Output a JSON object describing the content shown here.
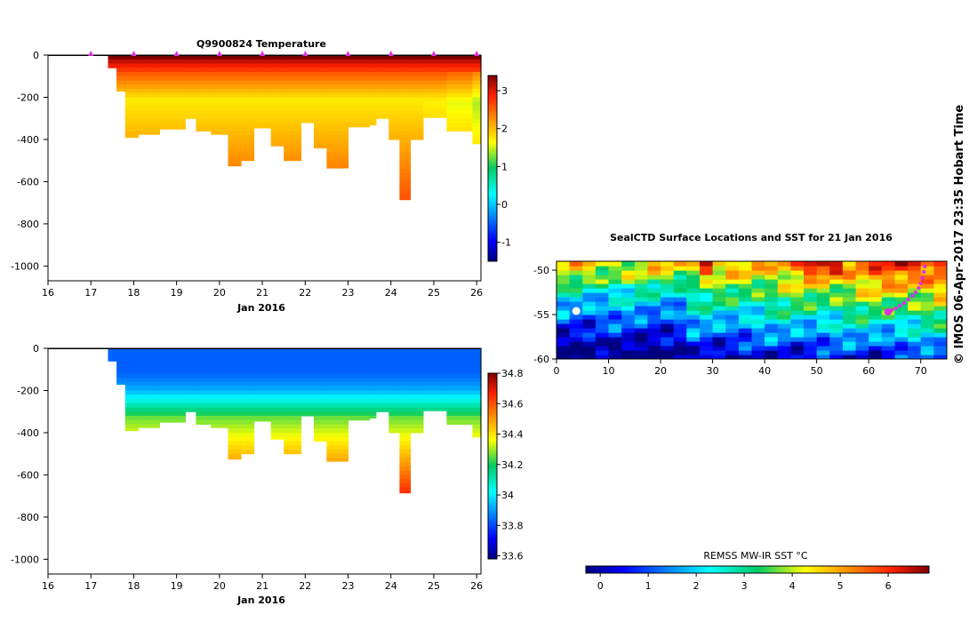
{
  "side_label": "© IMOS 06-Apr-2017 23:35 Hobart Time",
  "chart_data": [
    {
      "type": "heatmap",
      "title": "Q9900824  Temperature",
      "xlabel": "Jan 2016",
      "ylabel": "",
      "xlim": [
        16,
        26.1
      ],
      "ylim": [
        -1070,
        0
      ],
      "x_ticks": [
        16,
        17,
        18,
        19,
        20,
        21,
        22,
        23,
        24,
        25,
        26
      ],
      "y_ticks": [
        0,
        -200,
        -400,
        -600,
        -800,
        -1000
      ],
      "profile_markers_x": [
        17,
        18,
        19,
        20,
        21,
        22,
        23,
        24,
        25,
        26
      ],
      "colorbar": {
        "min": -1.5,
        "max": 3.4,
        "ticks": [
          -1,
          0,
          1,
          2,
          3
        ]
      },
      "profile_max_depth": [
        [
          17.4,
          17.6,
          60
        ],
        [
          17.6,
          17.8,
          170
        ],
        [
          17.8,
          18.1,
          390
        ],
        [
          18.1,
          18.6,
          375
        ],
        [
          18.6,
          19.2,
          350
        ],
        [
          19.2,
          19.45,
          300
        ],
        [
          19.45,
          19.8,
          360
        ],
        [
          19.8,
          20.2,
          375
        ],
        [
          20.2,
          20.5,
          525
        ],
        [
          20.5,
          20.8,
          500
        ],
        [
          20.8,
          21.2,
          345
        ],
        [
          21.2,
          21.5,
          430
        ],
        [
          21.5,
          21.9,
          500
        ],
        [
          21.9,
          22.2,
          320
        ],
        [
          22.2,
          22.5,
          440
        ],
        [
          22.5,
          23.0,
          535
        ],
        [
          23.0,
          23.5,
          340
        ],
        [
          23.5,
          23.65,
          330
        ],
        [
          23.65,
          23.95,
          300
        ],
        [
          23.95,
          24.2,
          400
        ],
        [
          24.2,
          24.45,
          685
        ],
        [
          24.45,
          24.75,
          400
        ],
        [
          24.75,
          25.3,
          295
        ],
        [
          25.3,
          25.9,
          360
        ],
        [
          25.9,
          26.1,
          420
        ]
      ]
    },
    {
      "type": "heatmap",
      "title": "",
      "xlabel": "Jan 2016",
      "ylabel": "",
      "xlim": [
        16,
        26.1
      ],
      "ylim": [
        -1070,
        0
      ],
      "x_ticks": [
        16,
        17,
        18,
        19,
        20,
        21,
        22,
        23,
        24,
        25,
        26
      ],
      "y_ticks": [
        0,
        -200,
        -400,
        -600,
        -800,
        -1000
      ],
      "colorbar": {
        "min": 33.58,
        "max": 34.8,
        "ticks": [
          33.6,
          33.8,
          34,
          34.2,
          34.4,
          34.6,
          34.8
        ]
      }
    },
    {
      "type": "heatmap",
      "title": "SealCTD Surface Locations and SST for 21 Jan 2016",
      "xlabel": "",
      "ylabel": "",
      "xlim": [
        0,
        75
      ],
      "ylim": [
        -60,
        -49
      ],
      "x_ticks": [
        0,
        10,
        20,
        30,
        40,
        50,
        60,
        70
      ],
      "y_ticks": [
        -50,
        -55,
        -60
      ],
      "colorbar": {
        "label": "REMSS MW-IR SST °C",
        "min": -0.3,
        "max": 6.85,
        "ticks": [
          0,
          1,
          2,
          3,
          4,
          5,
          6
        ]
      },
      "track": {
        "lon": [
          70.8,
          70.6,
          70.3,
          70.0,
          69.6,
          69.0,
          68.4,
          67.6,
          66.8,
          66.0,
          65.2,
          64.4,
          63.7
        ],
        "lat": [
          -49.6,
          -50.2,
          -50.9,
          -51.5,
          -52.0,
          -52.5,
          -52.9,
          -53.3,
          -53.7,
          -54.0,
          -54.3,
          -54.5,
          -54.7
        ]
      },
      "current_position": {
        "lon": 63.7,
        "lat": -54.7
      },
      "white_marker": {
        "lon": 3.8,
        "lat": -54.6
      }
    }
  ]
}
